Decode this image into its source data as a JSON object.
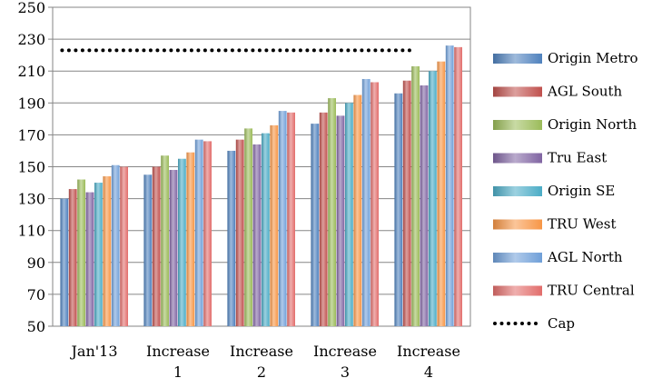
{
  "chart_data": {
    "type": "bar",
    "title": "",
    "xlabel": "",
    "ylabel": "",
    "ylim": [
      50,
      250
    ],
    "yticks": [
      50,
      70,
      90,
      110,
      130,
      150,
      170,
      190,
      210,
      230,
      250
    ],
    "grid": true,
    "legend_position": "right",
    "categories": [
      [
        "Jan'13"
      ],
      [
        "Increase",
        "1"
      ],
      [
        "Increase",
        "2"
      ],
      [
        "Increase",
        "3"
      ],
      [
        "Increase",
        "4"
      ]
    ],
    "series": [
      {
        "name": "Origin Metro",
        "color": "#4f81bd",
        "values": [
          130,
          145,
          160,
          177,
          196
        ]
      },
      {
        "name": "AGL South",
        "color": "#c0504d",
        "values": [
          136,
          150,
          167,
          184,
          204
        ]
      },
      {
        "name": "Origin North",
        "color": "#9bbb59",
        "values": [
          142,
          157,
          174,
          193,
          213
        ]
      },
      {
        "name": "Tru East",
        "color": "#8064a2",
        "values": [
          134,
          148,
          164,
          182,
          201
        ]
      },
      {
        "name": "Origin SE",
        "color": "#4bacc6",
        "values": [
          140,
          155,
          171,
          190,
          210
        ]
      },
      {
        "name": "TRU West",
        "color": "#f79646",
        "values": [
          144,
          159,
          176,
          195,
          216
        ]
      },
      {
        "name": "AGL North",
        "color": "#6f9fd8",
        "values": [
          151,
          167,
          185,
          205,
          226
        ]
      },
      {
        "name": "TRU Central",
        "color": "#e26d6b",
        "values": [
          150,
          166,
          184,
          203,
          225
        ]
      }
    ],
    "cap": {
      "name": "Cap",
      "value": 223,
      "color": "#000000"
    }
  }
}
